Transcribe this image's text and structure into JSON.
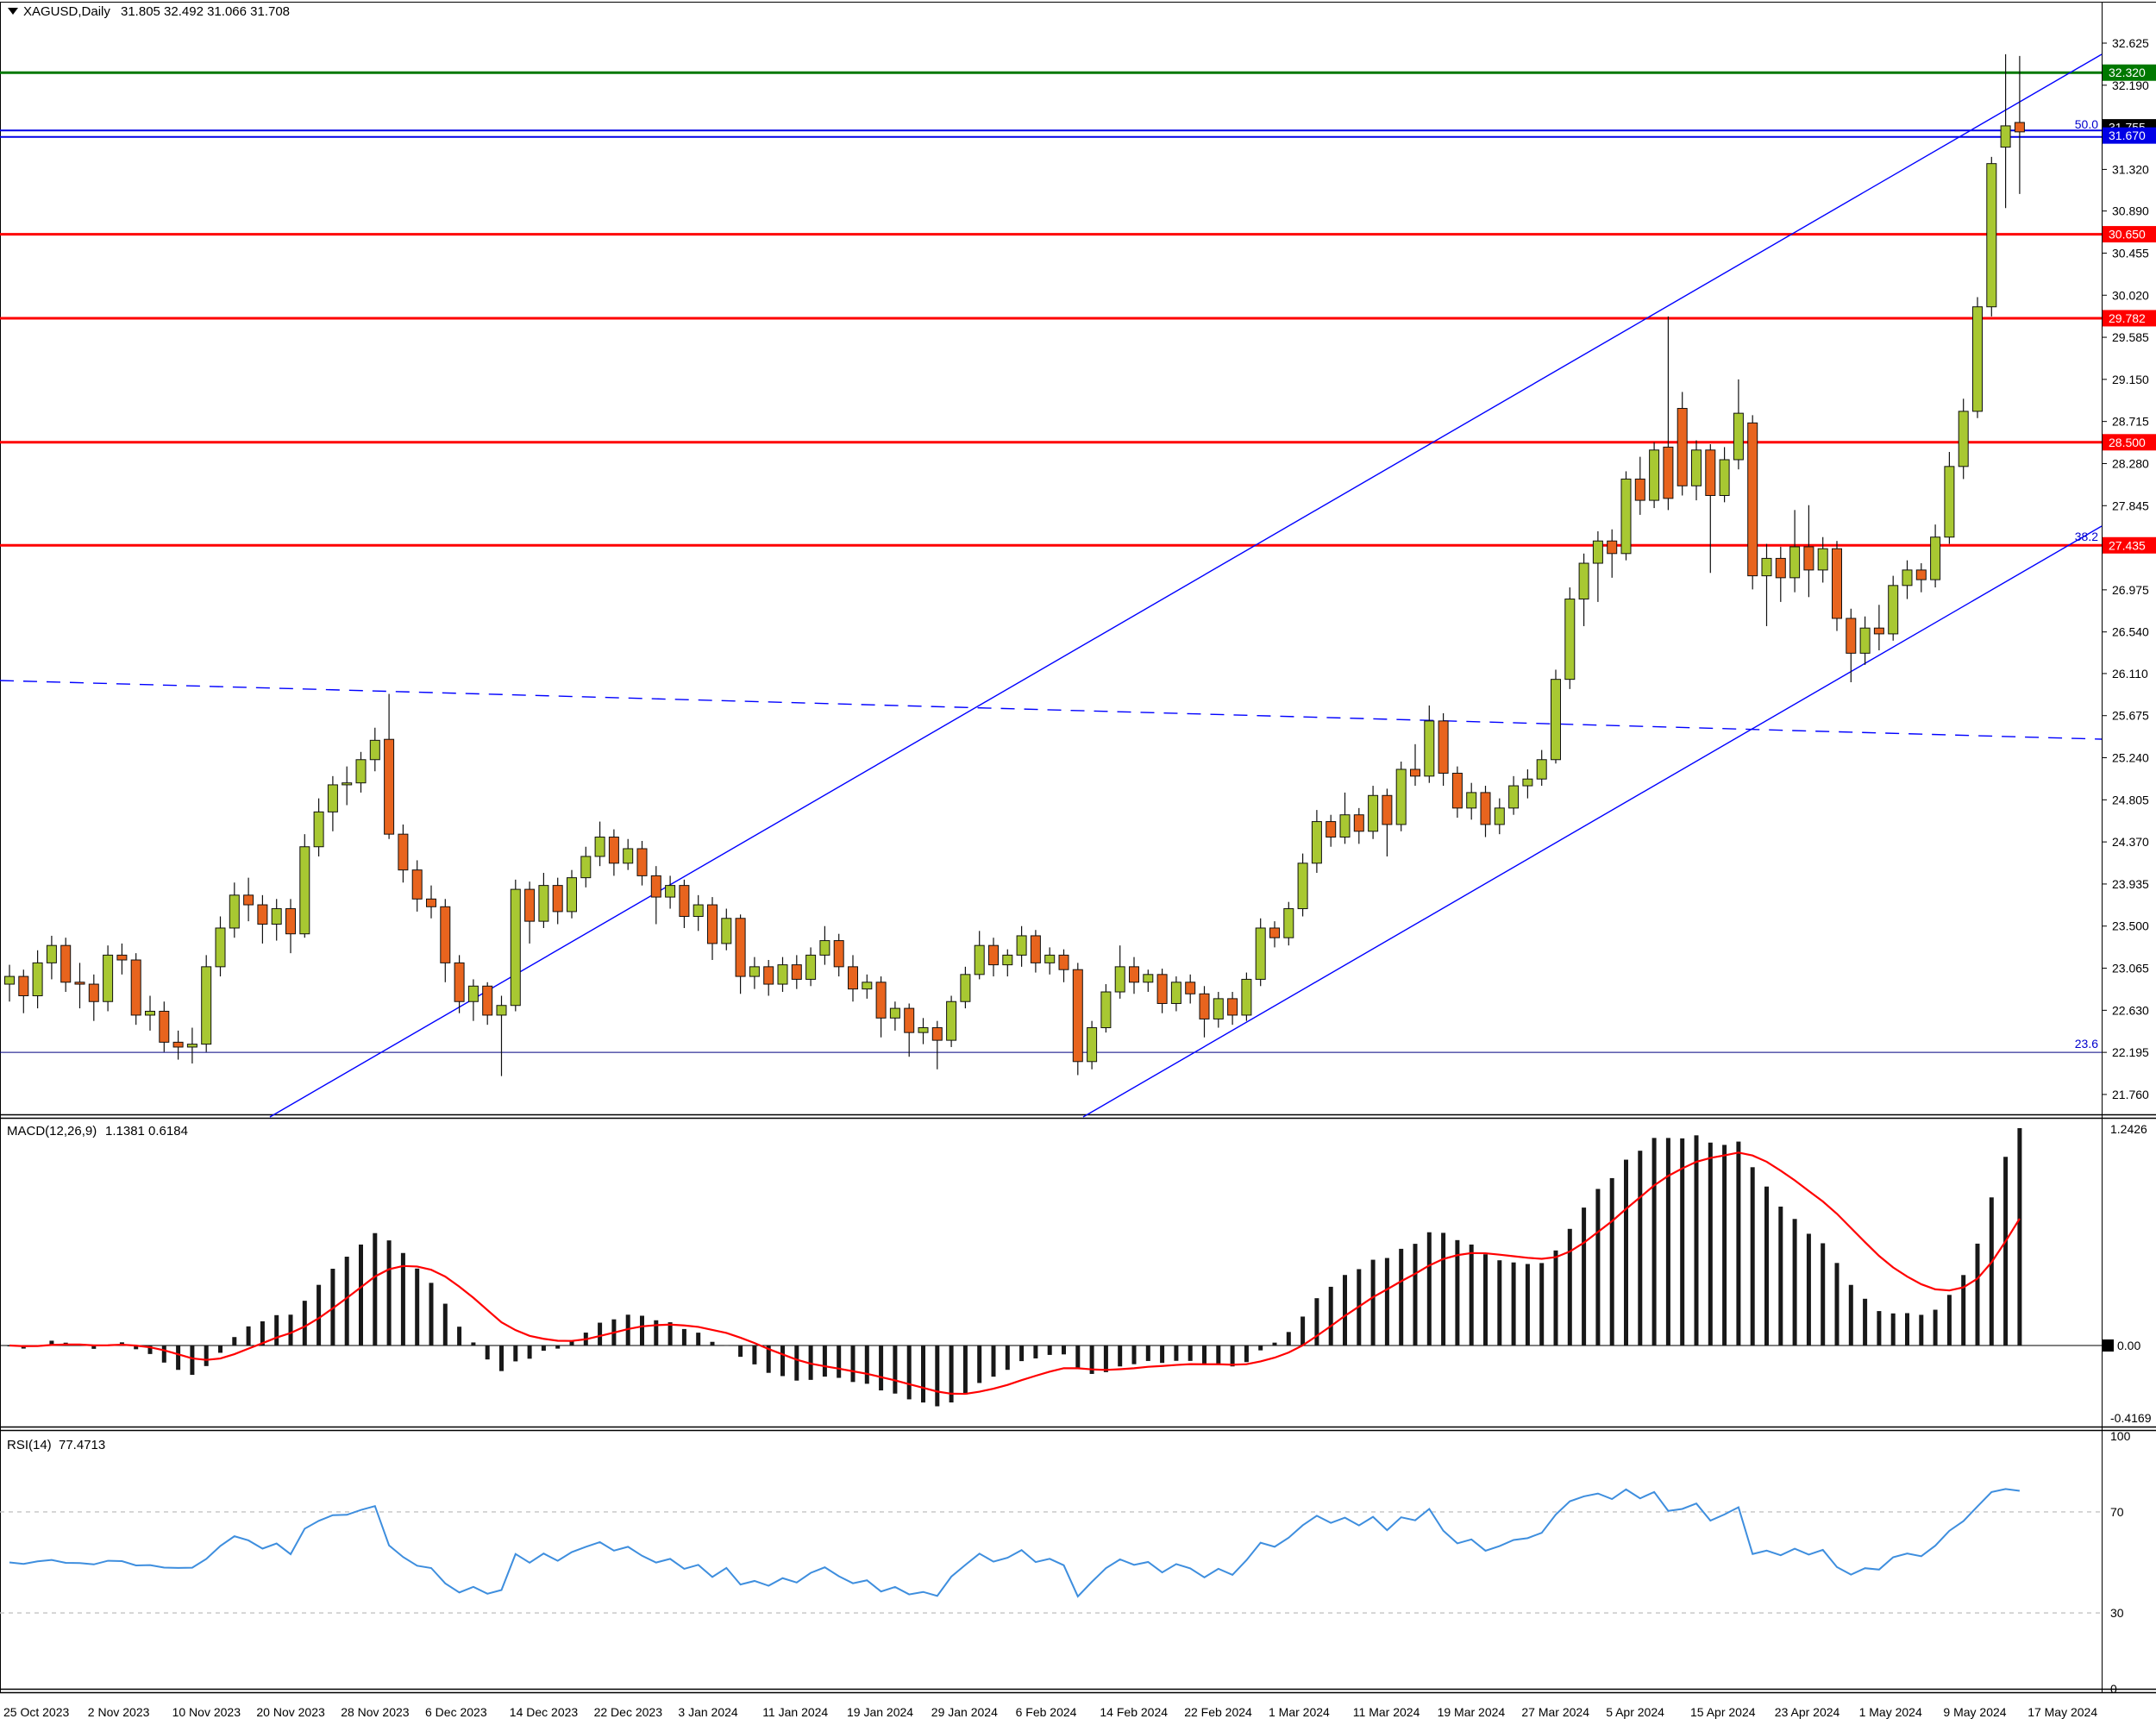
{
  "title": {
    "dropdown_icon": "chart-symbol-dropdown",
    "symbol": "XAGUSD,Daily",
    "ohlc": "31.805 32.492 31.066 31.708"
  },
  "indicators": {
    "macd": {
      "label": "MACD(12,26,9)",
      "values": "1.1381 0.6184",
      "axis": {
        "top": "1.2426",
        "zero": "0.00",
        "bottom": "-0.4169"
      }
    },
    "rsi": {
      "label": "RSI(14)",
      "value": "77.4713",
      "axis": [
        "100",
        "70",
        "30",
        "0"
      ],
      "levels": [
        70,
        30
      ]
    }
  },
  "colors": {
    "bull": "#A8C832",
    "bear": "#E8641E",
    "wick": "#111111",
    "red_level": "#FE0000",
    "green_level": "#007800",
    "blue_level": "#0000E6",
    "navy_level": "#000080",
    "trend": "#0000FF",
    "fib_text": "#0000CD",
    "macd_hist": "#181818",
    "macd_signal": "#FF0000",
    "rsi_line": "#3E8EDE",
    "rsi_grid": "#C4C4C4",
    "axis_text": "#000000"
  },
  "price_axis": {
    "ticks": [
      32.625,
      32.19,
      31.32,
      30.89,
      30.455,
      30.02,
      29.585,
      29.15,
      28.715,
      28.28,
      27.845,
      26.975,
      26.54,
      26.11,
      25.675,
      25.24,
      24.805,
      24.37,
      23.935,
      23.5,
      23.065,
      22.63,
      22.195,
      21.76
    ],
    "boxes": [
      {
        "text": "32.320",
        "price": 32.32,
        "bg": "#007800"
      },
      {
        "text": "31.755",
        "price": 31.755,
        "bg": "#000000"
      },
      {
        "text": "31.670",
        "price": 31.67,
        "bg": "#0000E6"
      },
      {
        "text": "30.650",
        "price": 30.65,
        "bg": "#FE0000"
      },
      {
        "text": "29.782",
        "price": 29.782,
        "bg": "#FE0000"
      },
      {
        "text": "28.500",
        "price": 28.5,
        "bg": "#FE0000"
      },
      {
        "text": "27.435",
        "price": 27.435,
        "bg": "#FE0000"
      }
    ]
  },
  "fib_labels": [
    {
      "text": "50.0",
      "y": 149
    },
    {
      "text": "38.2",
      "y": 627
    },
    {
      "text": "23.6",
      "y": 1215
    }
  ],
  "time_axis": [
    "25 Oct 2023",
    "2 Nov 2023",
    "10 Nov 2023",
    "20 Nov 2023",
    "28 Nov 2023",
    "6 Dec 2023",
    "14 Dec 2023",
    "22 Dec 2023",
    "3 Jan 2024",
    "11 Jan 2024",
    "19 Jan 2024",
    "29 Jan 2024",
    "6 Feb 2024",
    "14 Feb 2024",
    "22 Feb 2024",
    "1 Mar 2024",
    "11 Mar 2024",
    "19 Mar 2024",
    "27 Mar 2024",
    "5 Apr 2024",
    "15 Apr 2024",
    "23 Apr 2024",
    "1 May 2024",
    "9 May 2024",
    "17 May 2024"
  ],
  "chart_data": {
    "type": "candlestick",
    "symbol": "XAGUSD",
    "timeframe": "Daily",
    "title": "XAGUSD,Daily 31.805 32.492 31.066 31.708",
    "y_axis": {
      "top": 32.625,
      "bottom": 21.76,
      "tick_step": 0.435
    },
    "x_labels_every_bars": 6,
    "bars": [
      [
        22.9,
        23.1,
        22.72,
        22.98
      ],
      [
        22.98,
        23.05,
        22.6,
        22.78
      ],
      [
        22.78,
        23.25,
        22.65,
        23.12
      ],
      [
        23.12,
        23.4,
        22.95,
        23.3
      ],
      [
        23.3,
        23.38,
        22.82,
        22.92
      ],
      [
        22.92,
        23.12,
        22.65,
        22.9
      ],
      [
        22.9,
        23.0,
        22.52,
        22.72
      ],
      [
        22.72,
        23.3,
        22.62,
        23.2
      ],
      [
        23.2,
        23.32,
        23.0,
        23.15
      ],
      [
        23.15,
        23.22,
        22.48,
        22.58
      ],
      [
        22.58,
        22.78,
        22.42,
        22.62
      ],
      [
        22.62,
        22.72,
        22.2,
        22.3
      ],
      [
        22.3,
        22.42,
        22.12,
        22.25
      ],
      [
        22.25,
        22.45,
        22.08,
        22.28
      ],
      [
        22.28,
        23.2,
        22.2,
        23.08
      ],
      [
        23.08,
        23.6,
        22.98,
        23.48
      ],
      [
        23.48,
        23.95,
        23.38,
        23.82
      ],
      [
        23.82,
        24.0,
        23.55,
        23.72
      ],
      [
        23.72,
        23.82,
        23.32,
        23.52
      ],
      [
        23.52,
        23.78,
        23.35,
        23.68
      ],
      [
        23.68,
        23.78,
        23.22,
        23.42
      ],
      [
        23.42,
        24.45,
        23.38,
        24.32
      ],
      [
        24.32,
        24.82,
        24.22,
        24.68
      ],
      [
        24.68,
        25.05,
        24.48,
        24.96
      ],
      [
        24.96,
        25.15,
        24.75,
        24.98
      ],
      [
        24.98,
        25.3,
        24.88,
        25.22
      ],
      [
        25.22,
        25.55,
        25.1,
        25.42
      ],
      [
        25.43,
        25.9,
        24.4,
        24.45
      ],
      [
        24.45,
        24.55,
        23.95,
        24.08
      ],
      [
        24.08,
        24.18,
        23.65,
        23.78
      ],
      [
        23.78,
        23.92,
        23.58,
        23.7
      ],
      [
        23.7,
        23.78,
        22.92,
        23.12
      ],
      [
        23.12,
        23.2,
        22.6,
        22.72
      ],
      [
        22.72,
        22.95,
        22.52,
        22.88
      ],
      [
        22.88,
        22.92,
        22.48,
        22.58
      ],
      [
        22.58,
        22.78,
        21.95,
        22.68
      ],
      [
        22.68,
        23.98,
        22.62,
        23.88
      ],
      [
        23.88,
        23.96,
        23.32,
        23.55
      ],
      [
        23.55,
        24.05,
        23.48,
        23.92
      ],
      [
        23.92,
        24.0,
        23.52,
        23.65
      ],
      [
        23.65,
        24.08,
        23.58,
        24.0
      ],
      [
        24.0,
        24.32,
        23.9,
        24.22
      ],
      [
        24.22,
        24.58,
        24.12,
        24.42
      ],
      [
        24.42,
        24.5,
        24.02,
        24.15
      ],
      [
        24.15,
        24.4,
        24.08,
        24.3
      ],
      [
        24.3,
        24.38,
        23.92,
        24.02
      ],
      [
        24.02,
        24.12,
        23.52,
        23.8
      ],
      [
        23.8,
        24.02,
        23.68,
        23.92
      ],
      [
        23.92,
        23.98,
        23.48,
        23.6
      ],
      [
        23.6,
        23.82,
        23.45,
        23.72
      ],
      [
        23.72,
        23.8,
        23.15,
        23.32
      ],
      [
        23.32,
        23.68,
        23.25,
        23.58
      ],
      [
        23.58,
        23.62,
        22.8,
        22.98
      ],
      [
        22.98,
        23.18,
        22.85,
        23.08
      ],
      [
        23.08,
        23.15,
        22.78,
        22.9
      ],
      [
        22.9,
        23.18,
        22.82,
        23.1
      ],
      [
        23.1,
        23.2,
        22.85,
        22.95
      ],
      [
        22.95,
        23.28,
        22.88,
        23.2
      ],
      [
        23.2,
        23.5,
        23.1,
        23.35
      ],
      [
        23.35,
        23.42,
        22.98,
        23.08
      ],
      [
        23.08,
        23.2,
        22.72,
        22.85
      ],
      [
        22.85,
        23.0,
        22.75,
        22.92
      ],
      [
        22.92,
        22.98,
        22.35,
        22.55
      ],
      [
        22.55,
        22.72,
        22.42,
        22.65
      ],
      [
        22.65,
        22.7,
        22.15,
        22.4
      ],
      [
        22.4,
        22.55,
        22.28,
        22.45
      ],
      [
        22.45,
        22.52,
        22.02,
        22.32
      ],
      [
        22.32,
        22.78,
        22.25,
        22.72
      ],
      [
        22.72,
        23.08,
        22.65,
        23.0
      ],
      [
        23.0,
        23.45,
        22.95,
        23.3
      ],
      [
        23.3,
        23.38,
        22.98,
        23.1
      ],
      [
        23.1,
        23.26,
        22.98,
        23.2
      ],
      [
        23.2,
        23.5,
        23.08,
        23.4
      ],
      [
        23.4,
        23.46,
        23.02,
        23.12
      ],
      [
        23.12,
        23.28,
        23.0,
        23.2
      ],
      [
        23.2,
        23.26,
        22.92,
        23.05
      ],
      [
        23.05,
        23.12,
        21.96,
        22.1
      ],
      [
        22.1,
        22.52,
        22.02,
        22.45
      ],
      [
        22.45,
        22.9,
        22.4,
        22.82
      ],
      [
        22.82,
        23.3,
        22.75,
        23.08
      ],
      [
        23.08,
        23.18,
        22.8,
        22.92
      ],
      [
        22.92,
        23.05,
        22.82,
        23.0
      ],
      [
        23.0,
        23.06,
        22.6,
        22.7
      ],
      [
        22.7,
        22.98,
        22.62,
        22.92
      ],
      [
        22.92,
        23.0,
        22.7,
        22.8
      ],
      [
        22.8,
        22.88,
        22.35,
        22.54
      ],
      [
        22.54,
        22.82,
        22.45,
        22.75
      ],
      [
        22.75,
        22.82,
        22.48,
        22.58
      ],
      [
        22.58,
        23.02,
        22.52,
        22.95
      ],
      [
        22.95,
        23.58,
        22.88,
        23.48
      ],
      [
        23.48,
        23.55,
        23.28,
        23.38
      ],
      [
        23.38,
        23.75,
        23.3,
        23.68
      ],
      [
        23.68,
        24.25,
        23.6,
        24.15
      ],
      [
        24.15,
        24.7,
        24.05,
        24.58
      ],
      [
        24.58,
        24.65,
        24.32,
        24.42
      ],
      [
        24.42,
        24.88,
        24.35,
        24.65
      ],
      [
        24.65,
        24.72,
        24.35,
        24.48
      ],
      [
        24.48,
        24.95,
        24.4,
        24.85
      ],
      [
        24.85,
        24.92,
        24.22,
        24.55
      ],
      [
        24.55,
        25.2,
        24.48,
        25.12
      ],
      [
        25.12,
        25.38,
        24.95,
        25.05
      ],
      [
        25.05,
        25.78,
        24.98,
        25.62
      ],
      [
        25.62,
        25.7,
        24.95,
        25.08
      ],
      [
        25.08,
        25.15,
        24.62,
        24.72
      ],
      [
        24.72,
        24.98,
        24.6,
        24.88
      ],
      [
        24.88,
        24.95,
        24.42,
        24.55
      ],
      [
        24.55,
        24.82,
        24.45,
        24.72
      ],
      [
        24.72,
        25.05,
        24.65,
        24.95
      ],
      [
        24.95,
        25.12,
        24.82,
        25.02
      ],
      [
        25.02,
        25.32,
        24.95,
        25.22
      ],
      [
        25.22,
        26.15,
        25.18,
        26.05
      ],
      [
        26.05,
        27.0,
        25.95,
        26.88
      ],
      [
        26.88,
        27.35,
        26.6,
        27.25
      ],
      [
        27.25,
        27.58,
        26.85,
        27.48
      ],
      [
        27.48,
        27.6,
        27.1,
        27.35
      ],
      [
        27.35,
        28.2,
        27.28,
        28.12
      ],
      [
        28.12,
        28.35,
        27.75,
        27.9
      ],
      [
        27.9,
        28.5,
        27.82,
        28.42
      ],
      [
        28.45,
        29.8,
        27.8,
        27.92
      ],
      [
        28.85,
        29.02,
        27.95,
        28.05
      ],
      [
        28.05,
        28.52,
        27.9,
        28.42
      ],
      [
        28.42,
        28.48,
        27.15,
        27.95
      ],
      [
        27.95,
        28.45,
        27.88,
        28.32
      ],
      [
        28.32,
        29.15,
        28.22,
        28.8
      ],
      [
        28.7,
        28.78,
        26.98,
        27.12
      ],
      [
        27.12,
        27.45,
        26.6,
        27.3
      ],
      [
        27.3,
        27.42,
        26.85,
        27.1
      ],
      [
        27.1,
        27.8,
        26.95,
        27.42
      ],
      [
        27.42,
        27.85,
        26.9,
        27.18
      ],
      [
        27.18,
        27.52,
        27.05,
        27.4
      ],
      [
        27.4,
        27.48,
        26.55,
        26.68
      ],
      [
        26.68,
        26.78,
        26.02,
        26.32
      ],
      [
        26.32,
        26.7,
        26.2,
        26.58
      ],
      [
        26.58,
        26.82,
        26.35,
        26.52
      ],
      [
        26.52,
        27.12,
        26.45,
        27.02
      ],
      [
        27.02,
        27.28,
        26.88,
        27.18
      ],
      [
        27.18,
        27.25,
        26.95,
        27.08
      ],
      [
        27.08,
        27.65,
        27.0,
        27.52
      ],
      [
        27.52,
        28.4,
        27.45,
        28.25
      ],
      [
        28.25,
        28.95,
        28.12,
        28.82
      ],
      [
        28.82,
        30.0,
        28.75,
        29.9
      ],
      [
        29.9,
        31.45,
        29.8,
        31.38
      ],
      [
        31.55,
        32.51,
        30.92,
        31.77
      ],
      [
        31.805,
        32.492,
        31.066,
        31.708
      ]
    ],
    "overlays": {
      "hlines": [
        {
          "name": "resistance-green",
          "price": 32.32,
          "color": "#007800",
          "w": 3
        },
        {
          "name": "fib-50-line-a",
          "price": 31.722,
          "color": "#0000E6",
          "w": 2
        },
        {
          "name": "fib-50-line-b",
          "price": 31.656,
          "color": "#0000E6",
          "w": 2
        },
        {
          "name": "resistance-red-1",
          "price": 30.65,
          "color": "#FE0000",
          "w": 3
        },
        {
          "name": "resistance-red-2",
          "price": 29.782,
          "color": "#FE0000",
          "w": 3
        },
        {
          "name": "support-red-3",
          "price": 28.5,
          "color": "#FE0000",
          "w": 3
        },
        {
          "name": "fib-382-red",
          "price": 27.435,
          "color": "#FE0000",
          "w": 3
        },
        {
          "name": "fib-236-navy",
          "price": 22.195,
          "color": "#000080",
          "w": 1
        }
      ],
      "trendlines": [
        {
          "name": "ascending-trendline",
          "x1": 313,
          "y1": 1295,
          "x2": 2437,
          "y2": 63,
          "dash": false
        },
        {
          "name": "channel-lower-line",
          "x1": 1256,
          "y1": 1295,
          "x2": 2437,
          "y2": 610,
          "dash": false
        },
        {
          "name": "descending-dashed-line",
          "x1": 0,
          "y1": 789,
          "x2": 2437,
          "y2": 857,
          "dash": true
        }
      ]
    },
    "macd": {
      "fast": 12,
      "slow": 26,
      "signal": 9,
      "last": 1.1381,
      "last_signal": 0.6184,
      "ylim": [
        -0.4169,
        1.2426
      ]
    },
    "rsi": {
      "period": 14,
      "last": 77.4713,
      "ylim": [
        0,
        100
      ]
    }
  }
}
